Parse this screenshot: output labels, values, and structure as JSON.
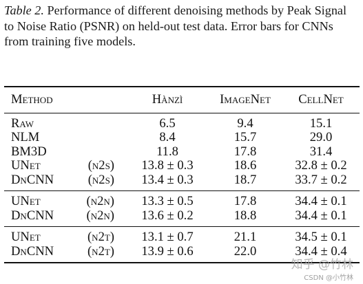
{
  "caption": {
    "lead": "Table 2.",
    "text": " Performance of different denoising methods by Peak Signal to Noise Ratio (PSNR) on held-out test data. Error bars for CNNs from training five models."
  },
  "table": {
    "headers": [
      "Method",
      "Hànzì",
      "ImageNet",
      "CellNet"
    ],
    "groups": [
      {
        "rows": [
          {
            "method": "Raw",
            "tag": "",
            "cells": [
              "6.5",
              "9.4",
              "15.1"
            ]
          },
          {
            "method": "NLM",
            "tag": "",
            "cells": [
              "8.4",
              "15.7",
              "29.0"
            ]
          },
          {
            "method": "BM3D",
            "tag": "",
            "cells": [
              "11.8",
              "17.8",
              "31.4"
            ]
          },
          {
            "method": "UNet",
            "tag": "(n2s)",
            "cells": [
              "13.8 ± 0.3",
              "18.6",
              "32.8 ± 0.2"
            ]
          },
          {
            "method": "DnCNN",
            "tag": "(n2s)",
            "cells": [
              "13.4 ± 0.3",
              "18.7",
              "33.7 ± 0.2"
            ]
          }
        ]
      },
      {
        "rows": [
          {
            "method": "UNet",
            "tag": "(n2n)",
            "cells": [
              "13.3 ± 0.5",
              "17.8",
              "34.4 ± 0.1"
            ]
          },
          {
            "method": "DnCNN",
            "tag": "(n2n)",
            "cells": [
              "13.6 ± 0.2",
              "18.8",
              "34.4 ± 0.1"
            ]
          }
        ]
      },
      {
        "rows": [
          {
            "method": "UNet",
            "tag": "(n2t)",
            "cells": [
              "13.1 ± 0.7",
              "21.1",
              "34.5 ± 0.1"
            ]
          },
          {
            "method": "DnCNN",
            "tag": "(n2t)",
            "cells": [
              "13.9 ± 0.6",
              "22.0",
              "34.4 ± 0.4"
            ]
          }
        ]
      }
    ]
  },
  "watermark": {
    "text": "知乎 @竹林",
    "sub": "CSDN @小竹林"
  }
}
